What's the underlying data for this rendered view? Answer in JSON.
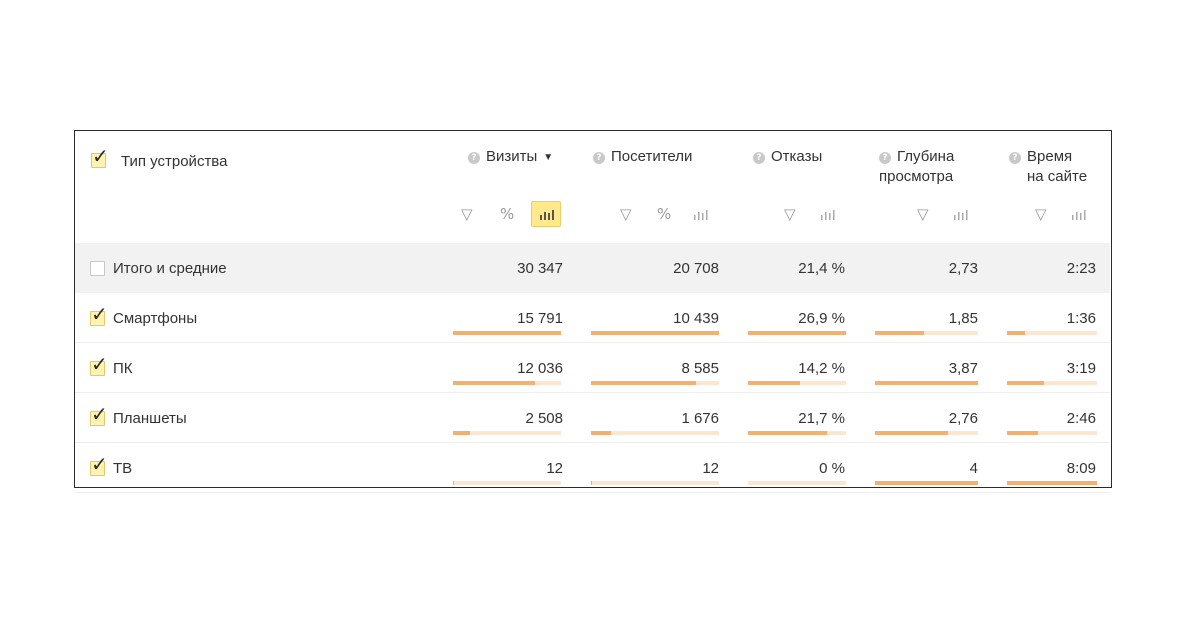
{
  "header": {
    "dimension_title": "Тип устройства",
    "columns": [
      {
        "key": "visits",
        "label": "Визиты",
        "label_line2": "",
        "sorted": true
      },
      {
        "key": "visitors",
        "label": "Посетители",
        "label_line2": "",
        "sorted": false
      },
      {
        "key": "bounces",
        "label": "Отказы",
        "label_line2": "",
        "sorted": false
      },
      {
        "key": "depth",
        "label": "Глубина",
        "label_line2": "просмотра",
        "sorted": false
      },
      {
        "key": "time",
        "label": "Время",
        "label_line2": "на сайте",
        "sorted": false
      }
    ],
    "tools": {
      "filter": "▽",
      "percent": "%",
      "bars": "bar-chart-icon"
    },
    "sort_arrow": "▼",
    "help_icon": "?"
  },
  "rows": [
    {
      "label": "Итого и средние",
      "checked": false,
      "total": true,
      "values": [
        "30 347",
        "20 708",
        "21,4 %",
        "2,73",
        "2:23"
      ],
      "bars": [
        0,
        0,
        0,
        0,
        0
      ]
    },
    {
      "label": "Смартфоны",
      "checked": true,
      "total": false,
      "values": [
        "15 791",
        "10 439",
        "26,9 %",
        "1,85",
        "1:36"
      ],
      "bars": [
        1.0,
        1.0,
        1.0,
        0.48,
        0.2
      ]
    },
    {
      "label": "ПК",
      "checked": true,
      "total": false,
      "values": [
        "12 036",
        "8 585",
        "14,2 %",
        "3,87",
        "3:19"
      ],
      "bars": [
        0.76,
        0.82,
        0.53,
        1.0,
        0.41
      ]
    },
    {
      "label": "Планшеты",
      "checked": true,
      "total": false,
      "values": [
        "2 508",
        "1 676",
        "21,7 %",
        "2,76",
        "2:46"
      ],
      "bars": [
        0.16,
        0.16,
        0.81,
        0.71,
        0.34
      ]
    },
    {
      "label": "ТВ",
      "checked": true,
      "total": false,
      "values": [
        "12",
        "12",
        "0 %",
        "4",
        "8:09"
      ],
      "bars": [
        0.01,
        0.01,
        0.0,
        1.0,
        1.0
      ]
    }
  ],
  "colors": {
    "bar_fill": "#f3b071",
    "bar_track": "#fbe6cf",
    "checkbox_checked": "#fff3b0",
    "active_tool": "#ffe98a"
  }
}
